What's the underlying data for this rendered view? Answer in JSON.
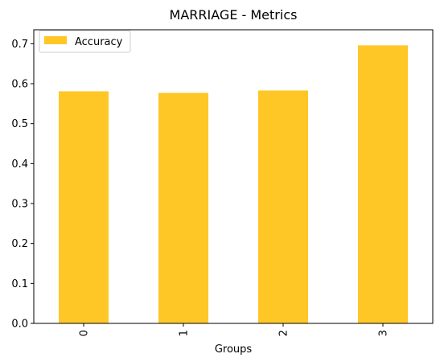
{
  "chart_data": {
    "type": "bar",
    "title": "MARRIAGE - Metrics",
    "xlabel": "Groups",
    "ylabel": "",
    "categories": [
      "0",
      "1",
      "2",
      "3"
    ],
    "series": [
      {
        "name": "Accuracy",
        "values": [
          0.581,
          0.577,
          0.583,
          0.696
        ],
        "color": "#FFC726"
      }
    ],
    "ylim": [
      0,
      0.735
    ],
    "yticks": [
      0.0,
      0.1,
      0.2,
      0.3,
      0.4,
      0.5,
      0.6,
      0.7
    ],
    "ytick_labels": [
      "0.0",
      "0.1",
      "0.2",
      "0.3",
      "0.4",
      "0.5",
      "0.6",
      "0.7"
    ],
    "grid": false,
    "legend_position": "top-left"
  }
}
